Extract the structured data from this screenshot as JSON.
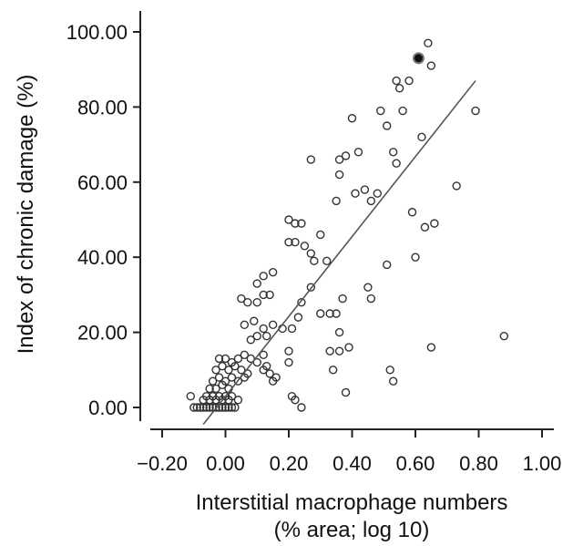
{
  "chart_data": {
    "type": "scatter",
    "xlabel": [
      "Interstitial macrophage numbers",
      "(% area; log 10)"
    ],
    "ylabel": "Index of chronic damage (%)",
    "xlim": [
      -0.2,
      1.0
    ],
    "ylim": [
      0,
      100
    ],
    "xticks": [
      "−0.20",
      "0.00",
      "0.20",
      "0.40",
      "0.60",
      "0.80",
      "1.00"
    ],
    "yticks": [
      "0.00",
      "20.00",
      "40.00",
      "60.00",
      "80.00",
      "100.00"
    ],
    "grid": false,
    "legend": "none",
    "colors": {
      "marker": "#333333",
      "fit_line": "#555555",
      "axis": "#222222"
    },
    "fit_line": {
      "x": [
        -0.07,
        0.79
      ],
      "y": [
        -4.5,
        87
      ]
    },
    "highlighted_point": {
      "x": 0.61,
      "y": 93
    },
    "points": [
      [
        -0.1,
        0
      ],
      [
        -0.09,
        0
      ],
      [
        -0.08,
        0
      ],
      [
        -0.07,
        0
      ],
      [
        -0.06,
        0
      ],
      [
        -0.05,
        0
      ],
      [
        -0.04,
        0
      ],
      [
        -0.03,
        0
      ],
      [
        -0.02,
        0
      ],
      [
        -0.01,
        0
      ],
      [
        0.0,
        0
      ],
      [
        0.01,
        0
      ],
      [
        0.02,
        0
      ],
      [
        0.03,
        0
      ],
      [
        -0.11,
        3
      ],
      [
        -0.07,
        2
      ],
      [
        -0.06,
        3
      ],
      [
        -0.05,
        2
      ],
      [
        -0.04,
        3
      ],
      [
        -0.03,
        2
      ],
      [
        -0.02,
        3
      ],
      [
        -0.01,
        2
      ],
      [
        0.0,
        3
      ],
      [
        0.01,
        2
      ],
      [
        0.02,
        3
      ],
      [
        0.04,
        2
      ],
      [
        -0.05,
        5
      ],
      [
        -0.03,
        5
      ],
      [
        -0.01,
        6
      ],
      [
        0.01,
        5
      ],
      [
        -0.04,
        7
      ],
      [
        -0.02,
        8
      ],
      [
        0.0,
        7
      ],
      [
        0.02,
        8
      ],
      [
        0.04,
        7
      ],
      [
        0.06,
        8
      ],
      [
        -0.03,
        10
      ],
      [
        -0.01,
        11
      ],
      [
        0.01,
        10
      ],
      [
        0.03,
        11
      ],
      [
        0.05,
        10
      ],
      [
        0.07,
        9
      ],
      [
        -0.02,
        13
      ],
      [
        0.0,
        13
      ],
      [
        0.02,
        12
      ],
      [
        0.04,
        13
      ],
      [
        0.06,
        14
      ],
      [
        0.08,
        13
      ],
      [
        0.1,
        12
      ],
      [
        0.12,
        10
      ],
      [
        0.14,
        9
      ],
      [
        0.16,
        8
      ],
      [
        0.12,
        14
      ],
      [
        0.13,
        11
      ],
      [
        0.15,
        7
      ],
      [
        0.08,
        18
      ],
      [
        0.1,
        19
      ],
      [
        0.13,
        19
      ],
      [
        0.06,
        22
      ],
      [
        0.09,
        23
      ],
      [
        0.12,
        21
      ],
      [
        0.15,
        22
      ],
      [
        0.18,
        21
      ],
      [
        0.07,
        28
      ],
      [
        0.05,
        29
      ],
      [
        0.1,
        28
      ],
      [
        0.12,
        30
      ],
      [
        0.14,
        30
      ],
      [
        0.1,
        33
      ],
      [
        0.12,
        35
      ],
      [
        0.15,
        36
      ],
      [
        0.2,
        50
      ],
      [
        0.22,
        49
      ],
      [
        0.24,
        49
      ],
      [
        0.2,
        44
      ],
      [
        0.22,
        44
      ],
      [
        0.25,
        43
      ],
      [
        0.27,
        41
      ],
      [
        0.28,
        39
      ],
      [
        0.3,
        46
      ],
      [
        0.27,
        66
      ],
      [
        0.2,
        15
      ],
      [
        0.2,
        12
      ],
      [
        0.21,
        21
      ],
      [
        0.23,
        24
      ],
      [
        0.24,
        28
      ],
      [
        0.21,
        3
      ],
      [
        0.22,
        2
      ],
      [
        0.24,
        0
      ],
      [
        0.27,
        32
      ],
      [
        0.3,
        25
      ],
      [
        0.32,
        39
      ],
      [
        0.33,
        25
      ],
      [
        0.33,
        15
      ],
      [
        0.34,
        10
      ],
      [
        0.35,
        25
      ],
      [
        0.36,
        15
      ],
      [
        0.36,
        20
      ],
      [
        0.37,
        29
      ],
      [
        0.38,
        4
      ],
      [
        0.39,
        16
      ],
      [
        0.35,
        55
      ],
      [
        0.36,
        62
      ],
      [
        0.36,
        66
      ],
      [
        0.38,
        67
      ],
      [
        0.4,
        77
      ],
      [
        0.41,
        57
      ],
      [
        0.42,
        68
      ],
      [
        0.44,
        58
      ],
      [
        0.45,
        32
      ],
      [
        0.46,
        29
      ],
      [
        0.46,
        55
      ],
      [
        0.48,
        57
      ],
      [
        0.49,
        79
      ],
      [
        0.51,
        75
      ],
      [
        0.51,
        38
      ],
      [
        0.52,
        10
      ],
      [
        0.53,
        68
      ],
      [
        0.54,
        65
      ],
      [
        0.53,
        7
      ],
      [
        0.54,
        87
      ],
      [
        0.55,
        85
      ],
      [
        0.56,
        79
      ],
      [
        0.58,
        87
      ],
      [
        0.59,
        52
      ],
      [
        0.6,
        40
      ],
      [
        0.62,
        72
      ],
      [
        0.63,
        48
      ],
      [
        0.64,
        97
      ],
      [
        0.65,
        91
      ],
      [
        0.66,
        49
      ],
      [
        0.65,
        16
      ],
      [
        0.73,
        59
      ],
      [
        0.79,
        79
      ],
      [
        0.88,
        19
      ]
    ]
  }
}
